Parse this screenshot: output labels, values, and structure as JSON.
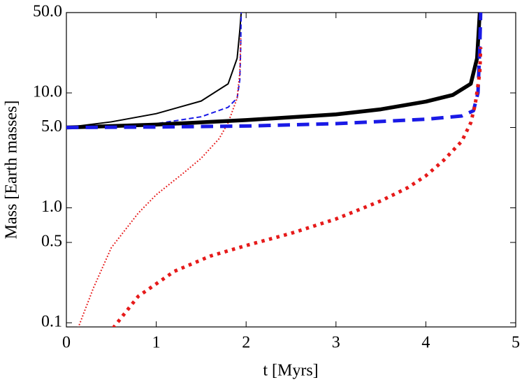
{
  "chart_data": {
    "type": "line",
    "xlabel": "t [Myrs]",
    "ylabel": "Mass [Earth masses]",
    "xlim": [
      0,
      5
    ],
    "xticks": [
      0,
      1,
      2,
      3,
      4,
      5
    ],
    "ylim": [
      0.092,
      50
    ],
    "yscale": "log",
    "yticks": [
      {
        "value": 0.1,
        "label": "0.1"
      },
      {
        "value": 0.5,
        "label": "0.5"
      },
      {
        "value": 1,
        "label": "1.0"
      },
      {
        "value": 5,
        "label": "5.0"
      },
      {
        "value": 10,
        "label": "10.0"
      },
      {
        "value": 50,
        "label": "50.0"
      }
    ],
    "series": [
      {
        "color": "#000000",
        "width": 2,
        "dash": "solid",
        "x": [
          0,
          0.5,
          1.0,
          1.5,
          1.8,
          1.9,
          1.93,
          1.945
        ],
        "values": [
          5,
          5.6,
          6.6,
          8.5,
          12,
          20,
          35,
          50
        ]
      },
      {
        "color": "#1a1ae6",
        "width": 2,
        "dash": "dashed",
        "x": [
          0,
          0.5,
          1.0,
          1.5,
          1.8,
          1.9,
          1.93,
          1.94,
          1.945
        ],
        "values": [
          5,
          5.1,
          5.4,
          6.2,
          7.5,
          9,
          13,
          25,
          50
        ]
      },
      {
        "color": "#e61a1a",
        "width": 2,
        "dash": "dotted",
        "x": [
          0.13,
          0.3,
          0.5,
          0.8,
          1.0,
          1.3,
          1.5,
          1.7,
          1.8,
          1.9,
          1.93,
          1.94
        ],
        "values": [
          0.09,
          0.2,
          0.45,
          0.9,
          1.3,
          2.0,
          2.7,
          4,
          5.5,
          9,
          15,
          30
        ]
      },
      {
        "color": "#000000",
        "width": 5.5,
        "dash": "solid",
        "x": [
          0,
          1,
          2,
          3,
          3.5,
          4,
          4.3,
          4.5,
          4.57,
          4.6
        ],
        "values": [
          5,
          5.3,
          5.8,
          6.5,
          7.2,
          8.4,
          9.6,
          12,
          20,
          50
        ]
      },
      {
        "color": "#1a1ae6",
        "width": 5,
        "dash": "dashed",
        "x": [
          0,
          1,
          2,
          3,
          4,
          4.4,
          4.53,
          4.58,
          4.6,
          4.61
        ],
        "values": [
          5,
          5.05,
          5.15,
          5.4,
          5.9,
          6.3,
          7,
          10,
          25,
          50
        ]
      },
      {
        "color": "#e61a1a",
        "width": 5,
        "dash": "dotted",
        "x": [
          0.52,
          0.8,
          1.2,
          1.6,
          2.0,
          2.5,
          3.0,
          3.5,
          3.8,
          4.0,
          4.2,
          4.4,
          4.5,
          4.55,
          4.6,
          4.61
        ],
        "values": [
          0.09,
          0.17,
          0.28,
          0.38,
          0.47,
          0.6,
          0.8,
          1.15,
          1.5,
          1.9,
          2.6,
          3.8,
          5.5,
          8,
          15,
          25
        ]
      }
    ]
  }
}
